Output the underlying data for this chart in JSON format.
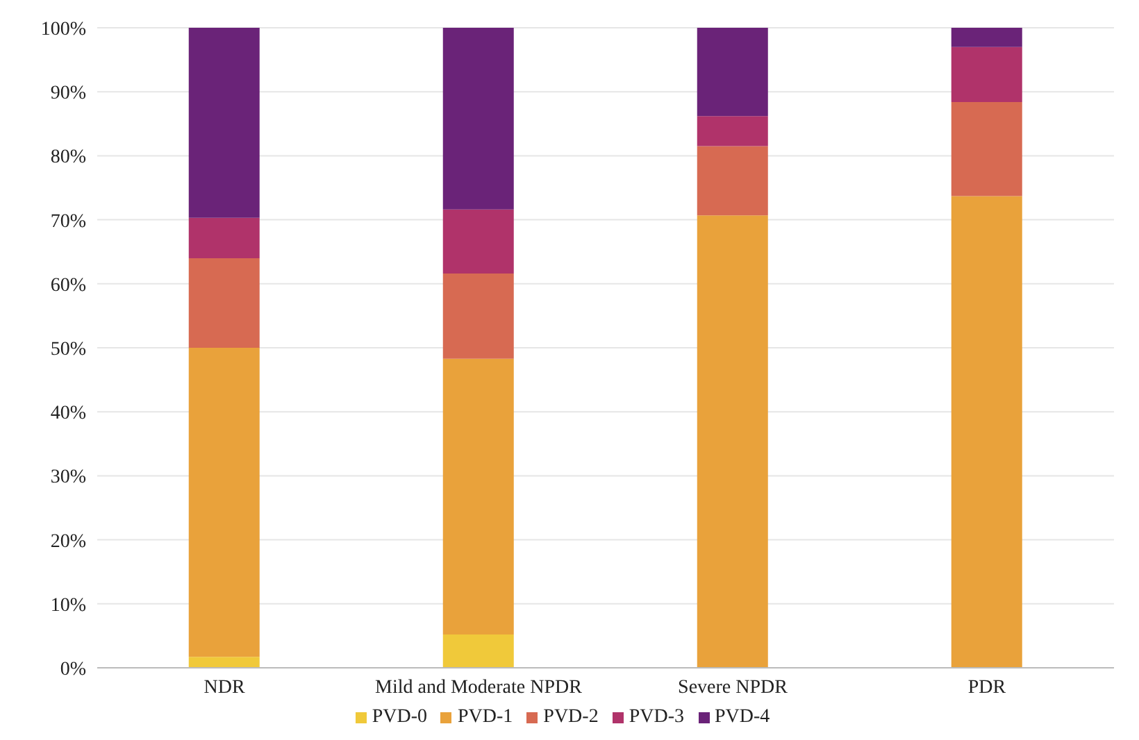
{
  "chart_data": {
    "type": "bar",
    "stacked": true,
    "categories": [
      "NDR",
      "Mild and Moderate NPDR",
      "Severe NPDR",
      "PDR"
    ],
    "series": [
      {
        "name": "PVD-0",
        "color": "#f0c93a",
        "values": [
          1.7,
          5.2,
          0,
          0
        ]
      },
      {
        "name": "PVD-1",
        "color": "#e9a23b",
        "values": [
          48.3,
          43.1,
          70.7,
          73.7
        ]
      },
      {
        "name": "PVD-2",
        "color": "#d76a52",
        "values": [
          14,
          13.3,
          10.8,
          14.7
        ]
      },
      {
        "name": "PVD-3",
        "color": "#b0336a",
        "values": [
          6.3,
          10,
          4.7,
          8.6
        ]
      },
      {
        "name": "PVD-4",
        "color": "#6a2378",
        "values": [
          29.7,
          28.4,
          13.8,
          3
        ]
      }
    ],
    "ylim": [
      0,
      100
    ],
    "yticks": [
      {
        "value": 0,
        "label": "0%"
      },
      {
        "value": 10,
        "label": "10%"
      },
      {
        "value": 20,
        "label": "20%"
      },
      {
        "value": 30,
        "label": "30%"
      },
      {
        "value": 40,
        "label": "40%"
      },
      {
        "value": 50,
        "label": "50%"
      },
      {
        "value": 60,
        "label": "60%"
      },
      {
        "value": 70,
        "label": "70%"
      },
      {
        "value": 80,
        "label": "80%"
      },
      {
        "value": 90,
        "label": "90%"
      },
      {
        "value": 100,
        "label": "100%"
      }
    ],
    "grid": "y",
    "legend": "bottom"
  }
}
